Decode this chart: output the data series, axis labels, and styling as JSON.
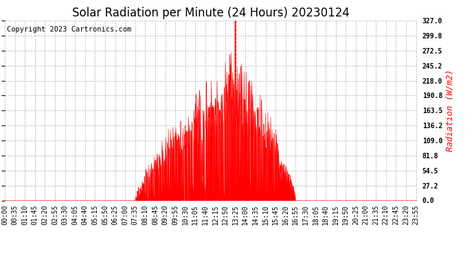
{
  "title": "Solar Radiation per Minute (24 Hours) 20230124",
  "copyright_text": "Copyright 2023 Cartronics.com",
  "ylabel": "Radiation (W/m2)",
  "ylabel_color": "#ff0000",
  "background_color": "#ffffff",
  "plot_bg_color": "#ffffff",
  "grid_color": "#b0b0b0",
  "fill_color": "#ff0000",
  "line_color": "#ff0000",
  "dashed_line_color": "#ff0000",
  "title_fontsize": 12,
  "ylabel_fontsize": 9,
  "copyright_fontsize": 7.5,
  "tick_fontsize": 7,
  "ymin": 0.0,
  "ymax": 327.0,
  "yticks": [
    0.0,
    27.2,
    54.5,
    81.8,
    109.0,
    136.2,
    163.5,
    190.8,
    218.0,
    245.2,
    272.5,
    299.8,
    327.0
  ],
  "num_minutes": 1440,
  "sunrise_minute": 455,
  "sunset_minute": 1015,
  "peak_minute": 805,
  "peak_value": 327.0,
  "vertical_line_minute": 805
}
